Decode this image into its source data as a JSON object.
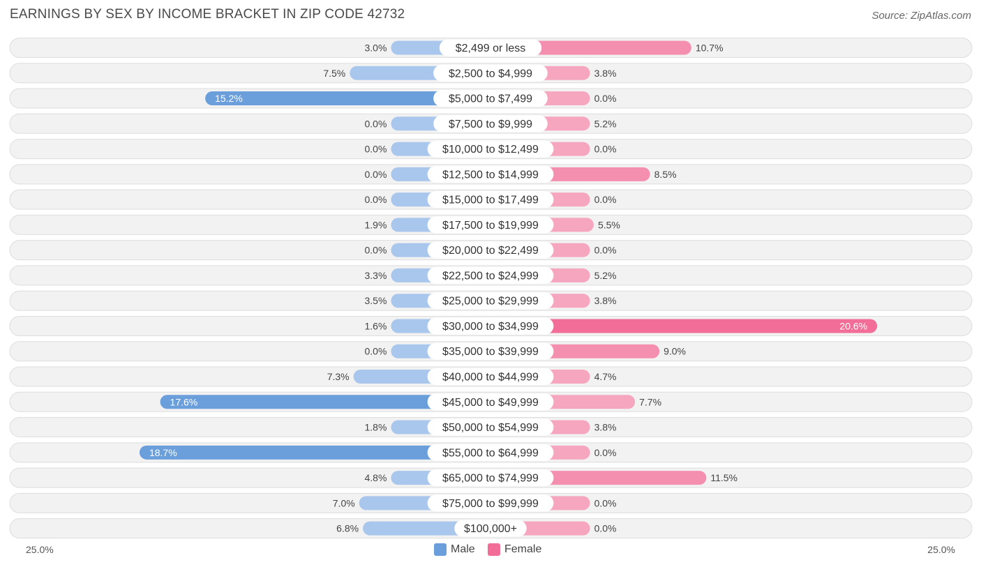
{
  "title": "EARNINGS BY SEX BY INCOME BRACKET IN ZIP CODE 42732",
  "source": "Source: ZipAtlas.com",
  "colors": {
    "male_strong": "#6a9fdc",
    "male_light": "#a9c7ec",
    "female_strong": "#f26d97",
    "female_light": "#f7a6c0",
    "row_bg": "#f2f2f2",
    "row_border": "#dddddd"
  },
  "legend": {
    "male_label": "Male",
    "female_label": "Female"
  },
  "axis": {
    "left_label": "25.0%",
    "right_label": "25.0%"
  },
  "chart_data": {
    "type": "bar",
    "orientation": "horizontal-diverging",
    "title": "EARNINGS BY SEX BY INCOME BRACKET IN ZIP CODE 42732",
    "xlim": [
      -25,
      25
    ],
    "categories": [
      "$2,499 or less",
      "$2,500 to $4,999",
      "$5,000 to $7,499",
      "$7,500 to $9,999",
      "$10,000 to $12,499",
      "$12,500 to $14,999",
      "$15,000 to $17,499",
      "$17,500 to $19,999",
      "$20,000 to $22,499",
      "$22,500 to $24,999",
      "$25,000 to $29,999",
      "$30,000 to $34,999",
      "$35,000 to $39,999",
      "$40,000 to $44,999",
      "$45,000 to $49,999",
      "$50,000 to $54,999",
      "$55,000 to $64,999",
      "$65,000 to $74,999",
      "$75,000 to $99,999",
      "$100,000+"
    ],
    "series": [
      {
        "name": "Male",
        "values": [
          3.0,
          7.5,
          15.2,
          0.0,
          0.0,
          0.0,
          0.0,
          1.9,
          0.0,
          3.3,
          3.5,
          1.6,
          0.0,
          7.3,
          17.6,
          1.8,
          18.7,
          4.8,
          7.0,
          6.8
        ]
      },
      {
        "name": "Female",
        "values": [
          10.7,
          3.8,
          0.0,
          5.2,
          0.0,
          8.5,
          0.0,
          5.5,
          0.0,
          5.2,
          3.8,
          20.6,
          9.0,
          4.7,
          7.7,
          3.8,
          0.0,
          11.5,
          0.0,
          0.0
        ]
      }
    ],
    "value_labels": {
      "Male": [
        "3.0%",
        "7.5%",
        "15.2%",
        "0.0%",
        "0.0%",
        "0.0%",
        "0.0%",
        "1.9%",
        "0.0%",
        "3.3%",
        "3.5%",
        "1.6%",
        "0.0%",
        "7.3%",
        "17.6%",
        "1.8%",
        "18.7%",
        "4.8%",
        "7.0%",
        "6.8%"
      ],
      "Female": [
        "10.7%",
        "3.8%",
        "0.0%",
        "5.2%",
        "0.0%",
        "8.5%",
        "0.0%",
        "5.5%",
        "0.0%",
        "5.2%",
        "3.8%",
        "20.6%",
        "9.0%",
        "4.7%",
        "7.7%",
        "3.8%",
        "0.0%",
        "11.5%",
        "0.0%",
        "0.0%"
      ]
    },
    "legend_position": "bottom-center"
  }
}
